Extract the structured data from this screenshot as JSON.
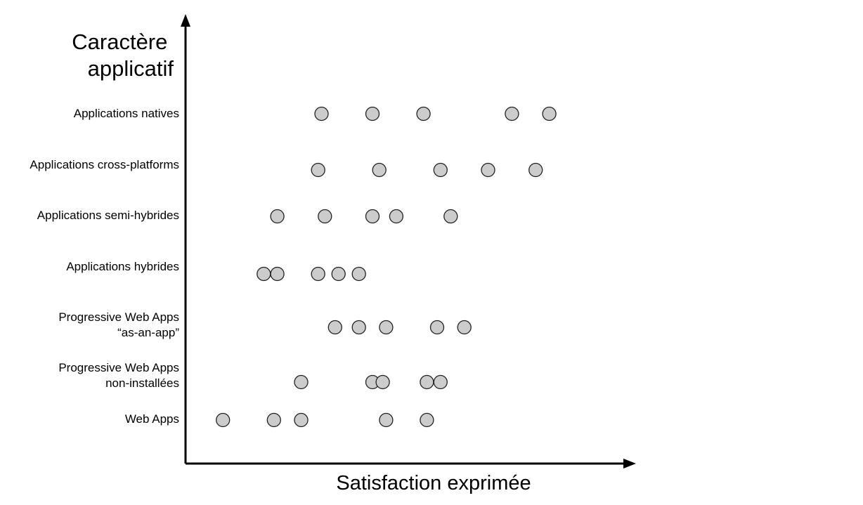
{
  "chart_data": {
    "type": "scatter",
    "xlabel": "Satisfaction exprimée",
    "ylabel": [
      "Caractère",
      "applicatif"
    ],
    "categories": [
      {
        "lines": [
          "Applications natives"
        ],
        "x": [
          4.15,
          4.9,
          5.65,
          6.95,
          7.5
        ]
      },
      {
        "lines": [
          "Applications cross-platforms"
        ],
        "x": [
          4.1,
          5.0,
          5.9,
          6.6,
          7.3
        ]
      },
      {
        "lines": [
          "Applications semi-hybrides"
        ],
        "x": [
          3.5,
          4.2,
          4.9,
          5.25,
          6.05
        ]
      },
      {
        "lines": [
          "Applications hybrides"
        ],
        "x": [
          3.3,
          3.5,
          4.1,
          4.4,
          4.7
        ]
      },
      {
        "lines": [
          "Progressive Web Apps",
          "“as-an-app”"
        ],
        "x": [
          4.35,
          4.7,
          5.1,
          5.85,
          6.25
        ]
      },
      {
        "lines": [
          "Progressive Web Apps",
          "non-installées"
        ],
        "x": [
          3.85,
          4.9,
          5.05,
          5.7,
          5.9
        ]
      },
      {
        "lines": [
          "Web Apps"
        ],
        "x": [
          2.7,
          3.45,
          3.85,
          5.1,
          5.7
        ]
      }
    ],
    "xlim": [
      2.15,
      8.6
    ],
    "colors": {
      "marker_fill": "#cccccc",
      "marker_edge": "#222222",
      "axis": "#000000"
    }
  }
}
